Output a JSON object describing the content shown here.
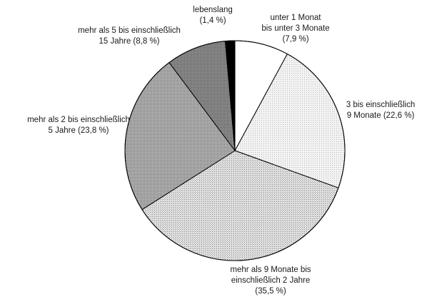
{
  "chart_data": {
    "type": "pie",
    "title": "",
    "start": "12 o'clock",
    "direction": "clockwise",
    "slices": [
      {
        "label_lines": [
          "unter 1 Monat",
          "bis unter 3 Monate",
          "(7,9 %)"
        ],
        "value": 7.9,
        "color": "#ffffff",
        "pattern": "none"
      },
      {
        "label_lines": [
          "3 bis einschließlich",
          "9 Monate (22,6 %)"
        ],
        "value": 22.6,
        "color": "#f1f1f1",
        "pattern": "dots-fine"
      },
      {
        "label_lines": [
          "mehr als 9 Monate bis",
          "einschließlich 2 Jahre",
          "(35,5 %)"
        ],
        "value": 35.5,
        "color": "#d6d6d6",
        "pattern": "dots-medium"
      },
      {
        "label_lines": [
          "mehr als 2 bis einschließlich",
          "5 Jahre (23,8 %)"
        ],
        "value": 23.8,
        "color": "#a3a3a3",
        "pattern": "dots-dense"
      },
      {
        "label_lines": [
          "mehr als 5 bis einschließlich",
          "15 Jahre (8,8 %)"
        ],
        "value": 8.8,
        "color": "#7d7d7d",
        "pattern": "dots-dark"
      },
      {
        "label_lines": [
          "lebenslang",
          "(1,4 %)"
        ],
        "value": 1.4,
        "color": "#000000",
        "pattern": "none"
      }
    ]
  }
}
